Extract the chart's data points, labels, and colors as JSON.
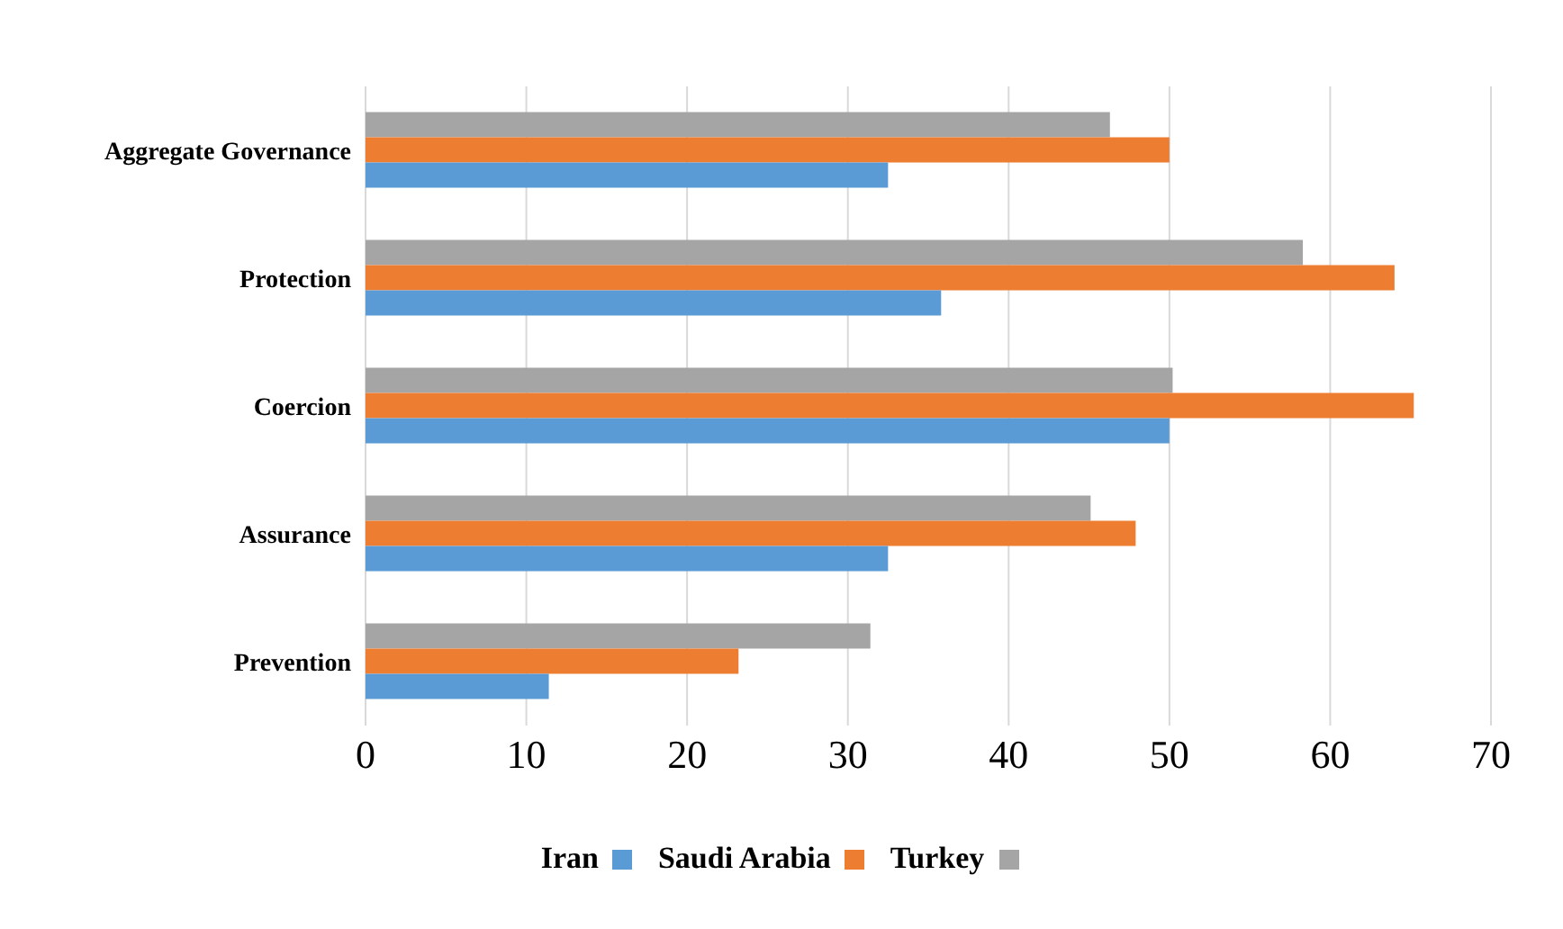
{
  "chart_data": {
    "type": "bar",
    "orientation": "horizontal",
    "categories": [
      "Aggregate Governance",
      "Protection",
      "Coercion",
      "Assurance",
      "Prevention"
    ],
    "series": [
      {
        "name": "Iran",
        "color": "#5b9bd5",
        "values": [
          32.5,
          35.8,
          50,
          32.5,
          11.4
        ]
      },
      {
        "name": "Saudi Arabia",
        "color": "#ed7d31",
        "values": [
          50,
          64,
          65.2,
          47.9,
          23.2
        ]
      },
      {
        "name": "Turkey",
        "color": "#a5a5a5",
        "values": [
          46.3,
          58.3,
          50.2,
          45.1,
          31.4
        ]
      }
    ],
    "xlim": [
      0,
      70
    ],
    "xticks": [
      0,
      10,
      20,
      30,
      40,
      50,
      60,
      70
    ],
    "grid": "x",
    "legend": "bottom"
  }
}
